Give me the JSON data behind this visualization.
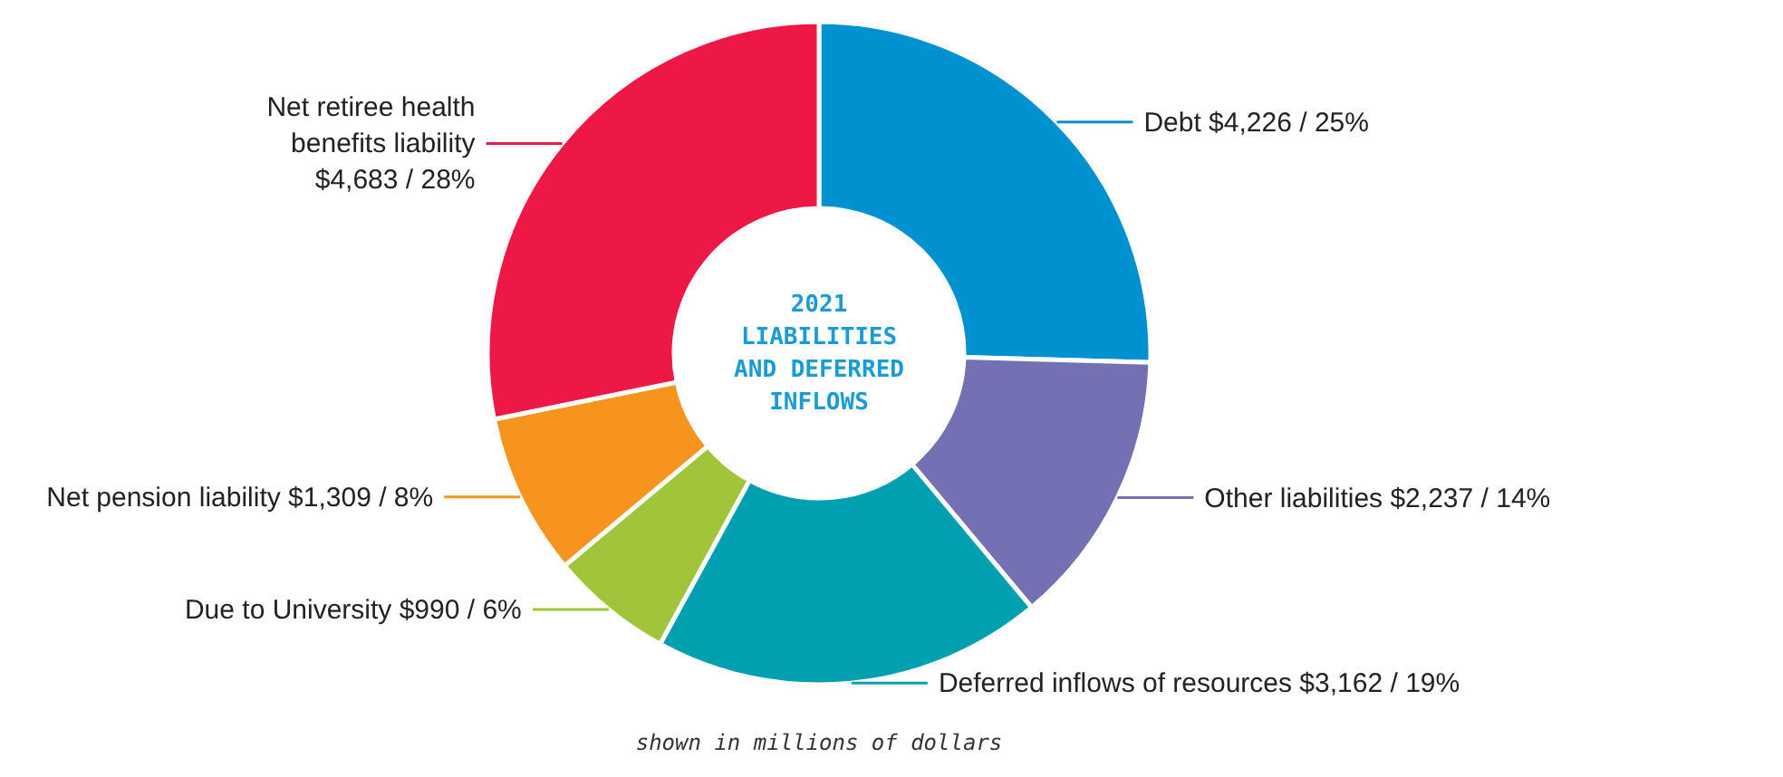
{
  "chart_data": {
    "type": "donut",
    "title": "2021 LIABILITIES AND DEFERRED INFLOWS",
    "categories": [
      "Debt",
      "Other liabilities",
      "Deferred inflows of resources",
      "Due to University",
      "Net pension liability",
      "Net retiree health benefits liability"
    ],
    "values": [
      4226,
      2237,
      3162,
      990,
      1309,
      4683
    ],
    "value_labels": [
      "$4,226 / 25%",
      "$2,237 / 14%",
      "$3,162 / 19%",
      "$990 / 6%",
      "$1,309 / 8%",
      "$4,683 / 28%"
    ],
    "colors": [
      "#0091d0",
      "#7370b3",
      "#00a0b0",
      "#a0c43a",
      "#f7941d",
      "#ee1846"
    ],
    "annotations": [
      "shown in millions of dollars"
    ]
  }
}
